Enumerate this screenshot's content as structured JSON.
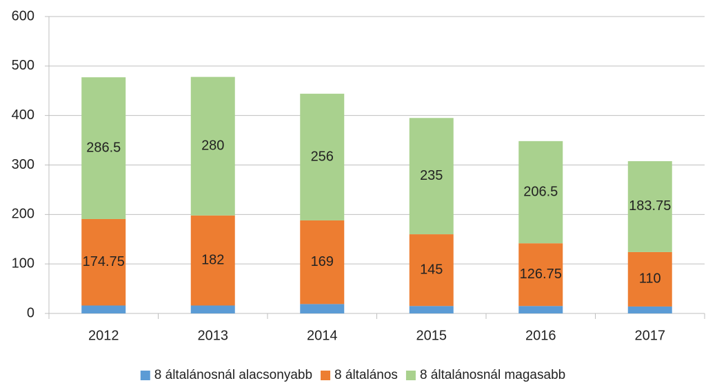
{
  "chart_data": {
    "type": "stacked_bar",
    "categories": [
      "2012",
      "2013",
      "2014",
      "2015",
      "2016",
      "2017"
    ],
    "series": [
      {
        "name": "8 általánosnál alacsonyabb",
        "color": "#5b9bd5",
        "values": [
          16,
          16,
          19,
          15,
          15,
          14
        ],
        "show_labels": false
      },
      {
        "name": "8 általános",
        "color": "#ed7d31",
        "values": [
          174.75,
          182,
          169,
          145,
          126.75,
          110
        ],
        "show_labels": true
      },
      {
        "name": "8 általánosnál magasabb",
        "color": "#a9d18e",
        "values": [
          286.5,
          280,
          256,
          235,
          206.5,
          183.75
        ],
        "show_labels": true
      }
    ],
    "ylim": [
      0,
      600
    ],
    "yticks": [
      0,
      100,
      200,
      300,
      400,
      500,
      600
    ],
    "grid": true,
    "legend": "bottom"
  }
}
